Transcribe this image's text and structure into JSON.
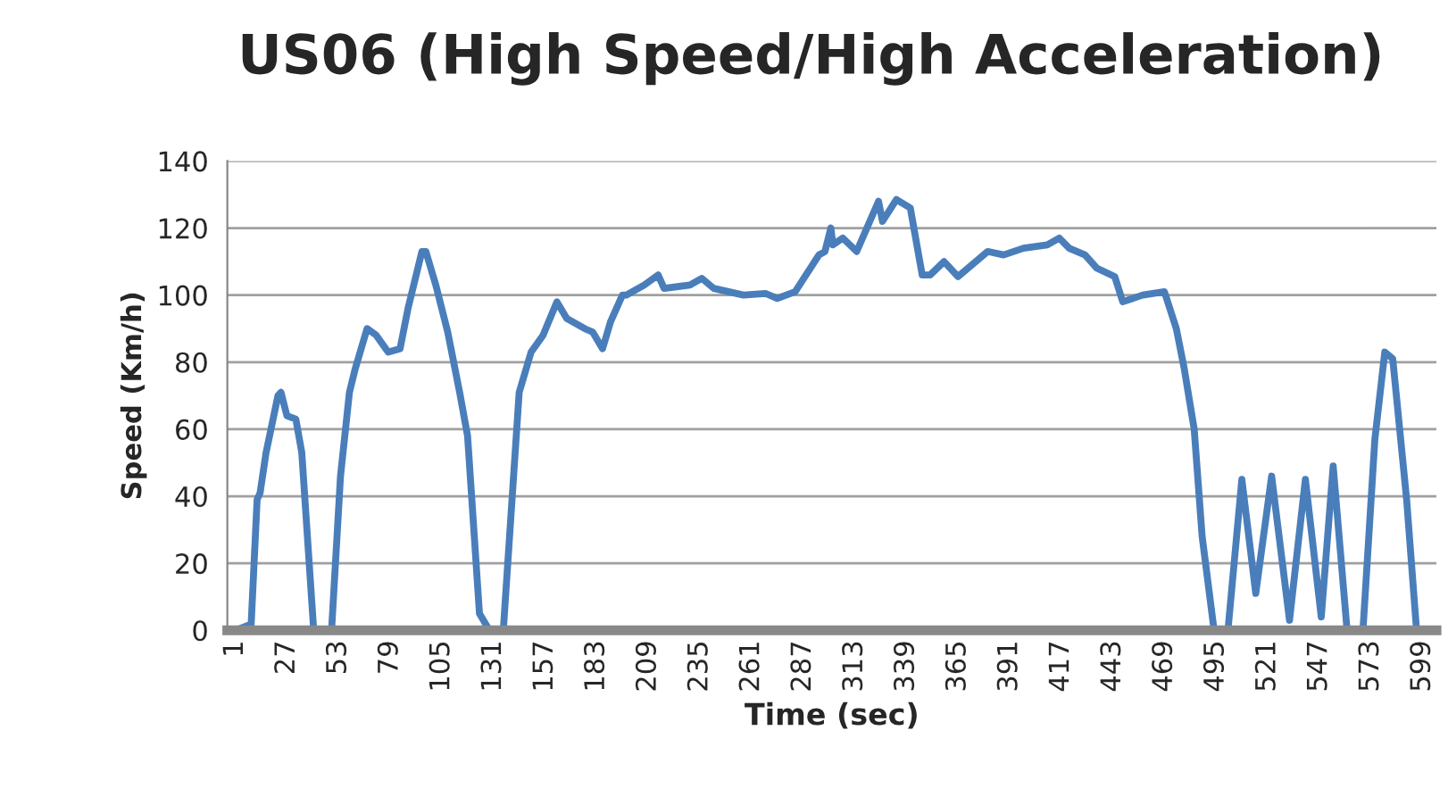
{
  "chart_data": {
    "type": "line",
    "title": "US06 (High Speed/High Acceleration)",
    "xlabel": "Time (sec)",
    "ylabel": "Speed (Km/h)",
    "x": [
      1,
      9,
      12,
      13.5,
      16.5,
      22.5,
      24,
      27,
      31.5,
      34.5,
      40.5,
      49.5,
      54,
      58.5,
      61.4,
      67.4,
      72,
      78,
      84,
      88,
      95,
      97,
      102,
      108,
      114,
      118,
      124,
      129,
      136,
      144,
      150,
      156,
      163,
      168,
      177,
      181,
      186,
      190,
      196,
      198,
      207,
      214,
      217,
      230,
      236,
      242,
      257,
      268,
      274,
      283,
      295,
      298,
      301,
      302,
      307,
      314,
      325,
      327,
      334,
      341,
      347,
      351,
      358,
      365,
      380,
      388,
      398,
      410,
      416,
      421,
      429,
      435,
      444,
      448,
      458,
      469,
      475,
      479,
      484,
      488,
      494,
      501,
      508,
      515,
      523,
      532,
      540,
      548,
      554,
      561,
      569,
      575,
      580,
      584,
      591,
      596,
      600
    ],
    "series": [
      {
        "color": "#4a7ebb",
        "values": [
          0,
          1.8,
          39,
          41,
          53,
          70,
          71,
          64,
          63,
          53,
          0,
          0,
          46,
          71,
          78,
          90,
          88,
          83,
          84,
          96,
          113,
          113,
          103,
          89,
          71,
          58,
          5,
          0,
          0,
          71,
          83,
          88,
          98,
          93,
          90,
          89,
          84,
          92,
          100,
          100,
          103,
          106,
          102,
          103,
          105,
          102,
          100,
          100.5,
          99,
          101,
          112,
          113,
          120,
          115,
          117,
          113,
          128,
          122,
          128.5,
          126,
          106,
          106,
          110,
          105.5,
          113,
          112,
          114,
          115,
          117,
          114,
          112,
          108,
          105.5,
          98,
          100,
          101,
          90,
          78,
          60,
          28,
          0,
          0,
          45,
          11,
          46,
          3,
          45,
          4,
          49,
          0,
          0,
          57,
          83,
          81,
          39,
          0,
          0
        ]
      }
    ],
    "xlim": [
      -3,
      606
    ],
    "ylim": [
      0,
      140
    ],
    "xticks": [
      1,
      27,
      53,
      79,
      105,
      131,
      157,
      183,
      209,
      235,
      261,
      287,
      313,
      339,
      365,
      391,
      417,
      443,
      469,
      495,
      521,
      547,
      573,
      599
    ],
    "yticks": [
      0,
      20,
      40,
      60,
      80,
      100,
      120,
      140
    ],
    "grid": "y",
    "legend": false,
    "marker": "none",
    "line_style": "solid"
  }
}
